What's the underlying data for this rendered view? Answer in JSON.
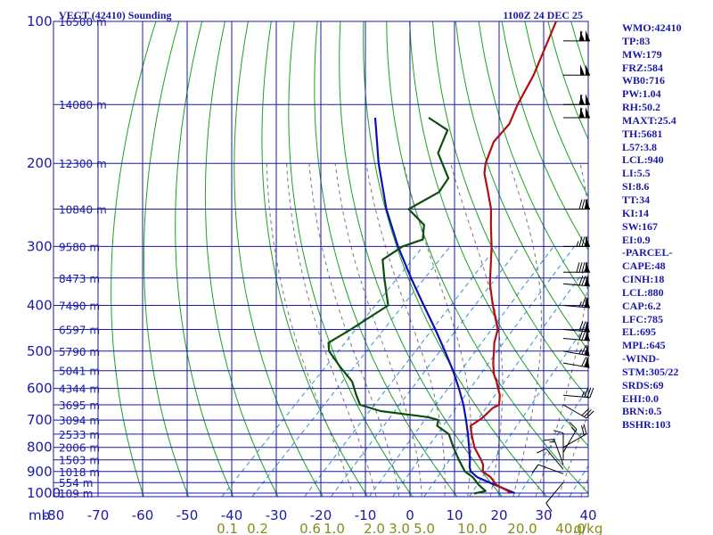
{
  "header": {
    "station": "VEGT (42410) Sounding",
    "time": "1100Z 24 DEC 25"
  },
  "indices": [
    "WMO:42410",
    "TP:83",
    "MW:179",
    "FRZ:584",
    "WB0:716",
    "PW:1.04",
    "RH:50.2",
    "MAXT:25.4",
    "TH:5681",
    "L57:3.8",
    "LCL:940",
    "LI:5.5",
    "SI:8.6",
    "TT:34",
    "KI:14",
    "SW:167",
    "EI:0.9",
    "-PARCEL-",
    "CAPE:48",
    "CINH:18",
    "LCL:880",
    "CAP:6.2",
    "LFC:785",
    "EL:695",
    "MPL:645",
    "-WIND-",
    "STM:305/22",
    "SRDS:69",
    "EHI:0.0",
    "BRN:0.5",
    "BSHR:103"
  ],
  "colors": {
    "grid": "#1a1aa6",
    "dry_adiabat": "#1fa01f",
    "temperature": "#b01010",
    "dewpoint": "#0d4d0d",
    "parcel": "#1010b0",
    "moist_adiabat": "#777777",
    "mixing_ratio": "#2f8fd0",
    "mixing_label": "#8a8a1a",
    "wind": "#000000"
  },
  "chart_data": {
    "type": "skew-t",
    "pressure_unit": "mb",
    "pressure_ticks": [
      "100",
      "200",
      "300",
      "400",
      "500",
      "600",
      "700",
      "800",
      "900",
      "1000"
    ],
    "pressure_label": "mb",
    "temperature_ticks": [
      "-80",
      "-70",
      "-60",
      "-50",
      "-40",
      "-30",
      "-20",
      "-10",
      "0",
      "10",
      "20",
      "30",
      "40"
    ],
    "mixing_ratio_labels": [
      "0.1",
      "0.2",
      "0.6",
      "1.0",
      "2.0",
      "3.0",
      "5.0",
      "10.0",
      "20.0",
      "40.0",
      "g/kg"
    ],
    "height_labels": [
      {
        "p": 100,
        "label": "16500 m"
      },
      {
        "p": 150,
        "label": "14080 m"
      },
      {
        "p": 200,
        "label": "12300 m"
      },
      {
        "p": 250,
        "label": "10840 m"
      },
      {
        "p": 300,
        "label": "9580 m"
      },
      {
        "p": 350,
        "label": "8473 m"
      },
      {
        "p": 400,
        "label": "7490 m"
      },
      {
        "p": 450,
        "label": "6597 m"
      },
      {
        "p": 500,
        "label": "5790 m"
      },
      {
        "p": 550,
        "label": "5041 m"
      },
      {
        "p": 600,
        "label": "4344 m"
      },
      {
        "p": 650,
        "label": "3695 m"
      },
      {
        "p": 700,
        "label": "3094 m"
      },
      {
        "p": 750,
        "label": "2533 m"
      },
      {
        "p": 800,
        "label": "2006 m"
      },
      {
        "p": 850,
        "label": "1503 m"
      },
      {
        "p": 900,
        "label": "1018 m"
      },
      {
        "p": 950,
        "label": "554 m"
      },
      {
        "p": 1000,
        "label": "109 m"
      }
    ],
    "temperature": [
      [
        1002,
        22.6
      ],
      [
        990,
        21.5
      ],
      [
        960,
        17.5
      ],
      [
        925,
        14.5
      ],
      [
        900,
        11.5
      ],
      [
        870,
        10.0
      ],
      [
        850,
        8.5
      ],
      [
        800,
        4.2
      ],
      [
        750,
        0.6
      ],
      [
        720,
        -1.5
      ],
      [
        700,
        -0.8
      ],
      [
        690,
        -0.6
      ],
      [
        660,
        -0.5
      ],
      [
        650,
        0.2
      ],
      [
        620,
        -1.8
      ],
      [
        580,
        -5.6
      ],
      [
        560,
        -7.8
      ],
      [
        530,
        -10.5
      ],
      [
        500,
        -13.0
      ],
      [
        480,
        -14.8
      ],
      [
        450,
        -17.0
      ],
      [
        400,
        -23.5
      ],
      [
        360,
        -29.0
      ],
      [
        300,
        -37.0
      ],
      [
        270,
        -42.0
      ],
      [
        250,
        -45.5
      ],
      [
        230,
        -50.0
      ],
      [
        210,
        -55.0
      ],
      [
        200,
        -57.0
      ],
      [
        180,
        -60.0
      ],
      [
        165,
        -60.5
      ],
      [
        150,
        -63.0
      ],
      [
        130,
        -66.0
      ],
      [
        100,
        -73.0
      ]
    ],
    "dewpoint": [
      [
        1002,
        14.5
      ],
      [
        990,
        16.5
      ],
      [
        960,
        13.5
      ],
      [
        925,
        10.5
      ],
      [
        900,
        7.5
      ],
      [
        850,
        3.5
      ],
      [
        800,
        -0.5
      ],
      [
        750,
        -4.5
      ],
      [
        720,
        -9.0
      ],
      [
        700,
        -10.0
      ],
      [
        690,
        -13.0
      ],
      [
        670,
        -25.0
      ],
      [
        650,
        -31.0
      ],
      [
        620,
        -34.0
      ],
      [
        580,
        -38.0
      ],
      [
        540,
        -44.0
      ],
      [
        500,
        -50.0
      ],
      [
        480,
        -52.0
      ],
      [
        450,
        -50.0
      ],
      [
        400,
        -47.0
      ],
      [
        350,
        -54.0
      ],
      [
        320,
        -58.5
      ],
      [
        300,
        -57.0
      ],
      [
        290,
        -54.0
      ],
      [
        270,
        -57.0
      ],
      [
        250,
        -64.0
      ],
      [
        230,
        -61.0
      ],
      [
        215,
        -62.0
      ],
      [
        190,
        -70.0
      ],
      [
        170,
        -73.0
      ],
      [
        160,
        -80.0
      ]
    ],
    "parcel": [
      [
        1000,
        23.5
      ],
      [
        950,
        15.5
      ],
      [
        925,
        11.5
      ],
      [
        900,
        8.8
      ],
      [
        880,
        7.5
      ],
      [
        850,
        6.0
      ],
      [
        800,
        3.0
      ],
      [
        750,
        -0.2
      ],
      [
        700,
        -3.8
      ],
      [
        650,
        -7.8
      ],
      [
        600,
        -12.5
      ],
      [
        550,
        -17.8
      ],
      [
        500,
        -24.0
      ],
      [
        450,
        -31.0
      ],
      [
        400,
        -39.0
      ],
      [
        350,
        -48.0
      ],
      [
        300,
        -58.0
      ],
      [
        250,
        -69.0
      ],
      [
        200,
        -81.0
      ],
      [
        160,
        -92.0
      ]
    ],
    "wind_barbs": [
      {
        "p": 110,
        "dir": 270,
        "spd": 110
      },
      {
        "p": 130,
        "dir": 270,
        "spd": 100
      },
      {
        "p": 150,
        "dir": 270,
        "spd": 110
      },
      {
        "p": 160,
        "dir": 270,
        "spd": 110
      },
      {
        "p": 250,
        "dir": 270,
        "spd": 80
      },
      {
        "p": 300,
        "dir": 270,
        "spd": 85
      },
      {
        "p": 340,
        "dir": 270,
        "spd": 90
      },
      {
        "p": 360,
        "dir": 275,
        "spd": 80
      },
      {
        "p": 400,
        "dir": 275,
        "spd": 75
      },
      {
        "p": 450,
        "dir": 275,
        "spd": 80
      },
      {
        "p": 470,
        "dir": 275,
        "spd": 80
      },
      {
        "p": 500,
        "dir": 280,
        "spd": 75
      },
      {
        "p": 530,
        "dir": 280,
        "spd": 70
      },
      {
        "p": 620,
        "dir": 275,
        "spd": 35
      },
      {
        "p": 650,
        "dir": 300,
        "spd": 30
      },
      {
        "p": 800,
        "dir": 240,
        "spd": 20
      },
      {
        "p": 820,
        "dir": 210,
        "spd": 15
      },
      {
        "p": 850,
        "dir": 180,
        "spd": 10
      },
      {
        "p": 870,
        "dir": 160,
        "spd": 15
      },
      {
        "p": 890,
        "dir": 140,
        "spd": 10
      },
      {
        "p": 910,
        "dir": 110,
        "spd": 10
      },
      {
        "p": 950,
        "dir": 40,
        "spd": 10
      }
    ],
    "xlim": [
      -80,
      40
    ],
    "ylim": [
      100,
      1000
    ]
  }
}
